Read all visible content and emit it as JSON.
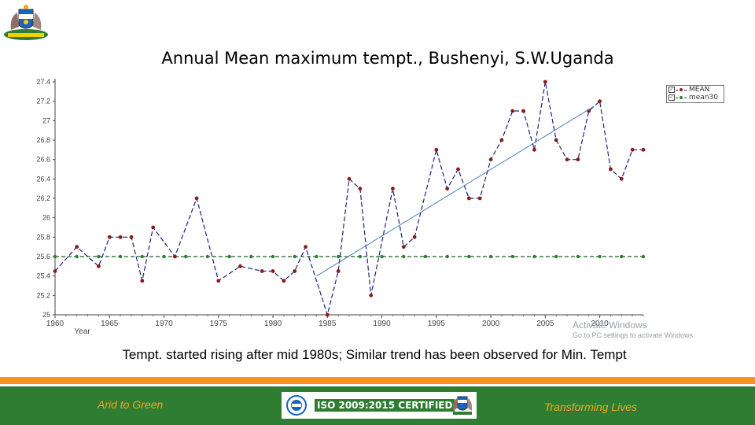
{
  "page": {
    "title": "Annual Mean maximum tempt., Bushenyi, S.W.Uganda",
    "caption": "Tempt. started rising after mid 1980s; Similar trend has been observed for Min. Tempt",
    "footer_left": "Arid to Green",
    "footer_center": "ISO 2009:2015 CERTIFIED",
    "footer_right": "Transforming Lives",
    "watermark_line1": "Activate Windows",
    "watermark_line2": "Go to PC settings to activate Windows."
  },
  "colors": {
    "mean_series": "#1a237e",
    "mean_marker": "#8b1a1a",
    "mean30_series": "#1b5e20",
    "mean30_marker": "#2e7d32",
    "trend_line": "#4a7fb5",
    "orange_bar": "#f7941d",
    "green_bar": "#2e7d32",
    "footer_text": "#f5a623"
  },
  "icons": {
    "top_logo": "coat-of-arms-icon",
    "iso_badge": "iso-seal-icon",
    "footer_logo": "coat-of-arms-icon"
  },
  "chart_data": {
    "type": "line",
    "title": "Annual Mean maximum tempt., Bushenyi, S.W.Uganda",
    "xlabel": "Year",
    "ylabel": "",
    "xlim": [
      1960,
      2014
    ],
    "ylim": [
      25,
      27.4
    ],
    "x_ticks": [
      1960,
      1965,
      1970,
      1975,
      1980,
      1985,
      1990,
      1995,
      2000,
      2005,
      2010
    ],
    "y_ticks": [
      25,
      25.2,
      25.4,
      25.6,
      25.8,
      26,
      26.2,
      26.4,
      26.6,
      26.8,
      27,
      27.2,
      27.4
    ],
    "y_tick_labels": [
      "25",
      "25.2",
      "25.4",
      "25.6",
      "25.8",
      "26",
      "26.2",
      "26.4",
      "26.6",
      "26.8",
      "27",
      "27.2",
      "27.4"
    ],
    "grid": false,
    "legend_position": "top-right",
    "legend": [
      "MEAN",
      "mean30"
    ],
    "series": [
      {
        "name": "MEAN",
        "style": "dashed-with-markers",
        "x": [
          1960,
          1962,
          1964,
          1965,
          1966,
          1967,
          1968,
          1969,
          1971,
          1973,
          1975,
          1977,
          1979,
          1980,
          1981,
          1982,
          1983,
          1985,
          1986,
          1987,
          1988,
          1989,
          1991,
          1992,
          1993,
          1995,
          1996,
          1997,
          1998,
          1999,
          2000,
          2001,
          2002,
          2003,
          2004,
          2005,
          2006,
          2007,
          2008,
          2009,
          2010,
          2011,
          2012,
          2013,
          2014
        ],
        "y": [
          25.45,
          25.7,
          25.5,
          25.8,
          25.8,
          25.8,
          25.35,
          25.9,
          25.6,
          26.2,
          25.35,
          25.5,
          25.45,
          25.45,
          25.35,
          25.45,
          25.7,
          25.0,
          25.45,
          26.4,
          26.3,
          25.2,
          26.3,
          25.7,
          25.8,
          26.7,
          26.3,
          26.5,
          26.2,
          26.2,
          26.6,
          26.8,
          27.1,
          27.1,
          26.7,
          27.4,
          26.8,
          26.6,
          26.6,
          27.1,
          27.2,
          26.5,
          26.4,
          26.7,
          26.7
        ]
      },
      {
        "name": "mean30",
        "style": "dashed-with-markers",
        "x": [
          1960,
          1962,
          1964,
          1966,
          1968,
          1970,
          1972,
          1974,
          1976,
          1978,
          1980,
          1982,
          1984,
          1986,
          1988,
          1990,
          1992,
          1994,
          1996,
          1998,
          2000,
          2002,
          2004,
          2006,
          2008,
          2010,
          2012,
          2014
        ],
        "y": [
          25.6,
          25.6,
          25.6,
          25.6,
          25.6,
          25.6,
          25.6,
          25.6,
          25.6,
          25.6,
          25.6,
          25.6,
          25.6,
          25.6,
          25.6,
          25.6,
          25.6,
          25.6,
          25.6,
          25.6,
          25.6,
          25.6,
          25.6,
          25.6,
          25.6,
          25.6,
          25.6,
          25.6
        ]
      }
    ],
    "trend_line": {
      "x": [
        1984,
        2009.5
      ],
      "y": [
        25.4,
        27.15
      ]
    }
  }
}
